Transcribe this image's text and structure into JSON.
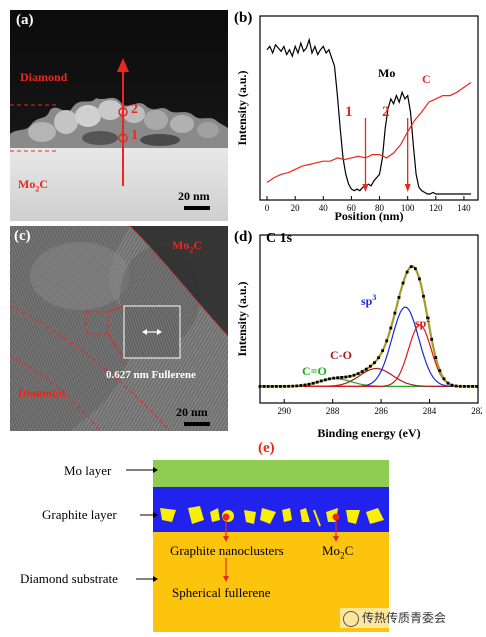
{
  "panel_a": {
    "label": "(a)",
    "diamond": "Diamond",
    "mo2c_main": "Mo",
    "mo2c_sub": "2",
    "mo2c_tail": "C",
    "marker1": "1",
    "marker2": "2",
    "scale": "20 nm",
    "colors": {
      "annotation": "#e8281e",
      "text_dark": "#000000"
    }
  },
  "panel_b": {
    "label": "(b)",
    "mo_label": "Mo",
    "c_label": "C",
    "marker1": "1",
    "marker2": "2",
    "colors": {
      "mo": "#000000",
      "c": "#e8281e",
      "marker": "#e8281e"
    }
  },
  "panel_c": {
    "label": "(c)",
    "mo2c_main": "Mo",
    "mo2c_sub": "2",
    "mo2c_tail": "C",
    "fullerene": "0.627 nm Fullerene",
    "diamond": "Diamond",
    "scale": "20 nm"
  },
  "panel_d": {
    "label": "(d)",
    "title": "C 1s",
    "c_eq_o": "C=O",
    "c_o": "C-O",
    "sp3_main": "sp",
    "sp3_sup": "3",
    "sp2_main": "sp",
    "sp2_sup": "2",
    "colors": {
      "c_eq_o": "#1faa1f",
      "c_o": "#a81e1e",
      "sp3": "#1a2bd8",
      "sp2": "#d81a1a",
      "envelope": "#a89b2a"
    }
  },
  "panel_e": {
    "label": "(e)",
    "mo_layer": "Mo layer",
    "graphite_layer": "Graphite layer",
    "diamond_substrate": "Diamond substrate",
    "nanoclusters": "Graphite nanoclusters",
    "fullerene": "Spherical fullerene",
    "mo2c_main": "Mo",
    "mo2c_sub": "2",
    "mo2c_tail": "C",
    "colors": {
      "mo": "#8fcc52",
      "graphite": "#2222ee",
      "substrate": "#fcc40c",
      "particles": "#f8f000",
      "arrow": "#e8281e"
    }
  },
  "watermark": "传热传质青委会",
  "chart_data": [
    {
      "type": "line",
      "panel": "(b)",
      "xlabel": "Position (nm)",
      "ylabel": "Intensity (a.u.)",
      "xlim": [
        -5,
        150
      ],
      "xticks": [
        0,
        20,
        40,
        60,
        80,
        100,
        120,
        140
      ],
      "series": [
        {
          "name": "Mo",
          "color": "#000000",
          "x": [
            0,
            2,
            4,
            6,
            8,
            10,
            12,
            14,
            16,
            18,
            20,
            22,
            24,
            26,
            28,
            30,
            32,
            34,
            36,
            38,
            40,
            42,
            44,
            46,
            48,
            50,
            52,
            54,
            56,
            58,
            60,
            62,
            64,
            66,
            68,
            70,
            72,
            74,
            76,
            78,
            80,
            82,
            84,
            86,
            88,
            90,
            92,
            94,
            96,
            98,
            100,
            102,
            104,
            106,
            108,
            110,
            112,
            114,
            116,
            118,
            120,
            125,
            130,
            135,
            140,
            145
          ],
          "y": [
            0.88,
            0.9,
            0.86,
            0.91,
            0.89,
            0.87,
            0.9,
            0.85,
            0.88,
            0.84,
            0.9,
            0.86,
            0.92,
            0.87,
            0.89,
            0.94,
            0.86,
            0.9,
            0.85,
            0.88,
            0.9,
            0.86,
            0.88,
            0.83,
            0.78,
            0.6,
            0.4,
            0.22,
            0.12,
            0.06,
            0.03,
            0.02,
            0.03,
            0.02,
            0.04,
            0.05,
            0.06,
            0.05,
            0.08,
            0.1,
            0.12,
            0.22,
            0.4,
            0.52,
            0.58,
            0.55,
            0.6,
            0.56,
            0.62,
            0.58,
            0.6,
            0.5,
            0.3,
            0.12,
            0.04,
            0.02,
            0.01,
            0.0,
            0.0,
            0.01,
            0.0,
            0.0,
            0.0,
            0.0,
            0.0,
            0.0
          ]
        },
        {
          "name": "C",
          "color": "#e8281e",
          "x": [
            0,
            5,
            10,
            15,
            20,
            25,
            30,
            35,
            40,
            45,
            50,
            55,
            60,
            65,
            70,
            75,
            80,
            85,
            90,
            95,
            100,
            105,
            110,
            115,
            120,
            125,
            130,
            135,
            140,
            145
          ],
          "y": [
            0.07,
            0.1,
            0.12,
            0.13,
            0.15,
            0.17,
            0.18,
            0.19,
            0.2,
            0.2,
            0.22,
            0.21,
            0.22,
            0.23,
            0.22,
            0.24,
            0.24,
            0.22,
            0.25,
            0.3,
            0.38,
            0.45,
            0.5,
            0.56,
            0.58,
            0.6,
            0.6,
            0.62,
            0.65,
            0.68
          ]
        }
      ],
      "markers": [
        {
          "label": "1",
          "x": 70
        },
        {
          "label": "2",
          "x": 100
        }
      ]
    },
    {
      "type": "line",
      "panel": "(d)",
      "title": "C 1s",
      "xlabel": "Binding energy (eV)",
      "ylabel": "Intensity (a.u.)",
      "xlim": [
        291,
        282
      ],
      "xticks": [
        290,
        288,
        286,
        284,
        282
      ],
      "series": [
        {
          "name": "C=O",
          "color": "#1faa1f",
          "center": 287.9,
          "height": 0.06,
          "fwhm": 1.6
        },
        {
          "name": "C-O",
          "color": "#a81e1e",
          "center": 286.2,
          "height": 0.14,
          "fwhm": 1.6
        },
        {
          "name": "sp3",
          "color": "#1a2bd8",
          "center": 285.0,
          "height": 0.62,
          "fwhm": 1.3
        },
        {
          "name": "sp2",
          "color": "#d81a1a",
          "center": 284.4,
          "height": 0.48,
          "fwhm": 1.1
        },
        {
          "name": "envelope",
          "color": "#a89b2a",
          "type": "sum"
        }
      ]
    }
  ]
}
